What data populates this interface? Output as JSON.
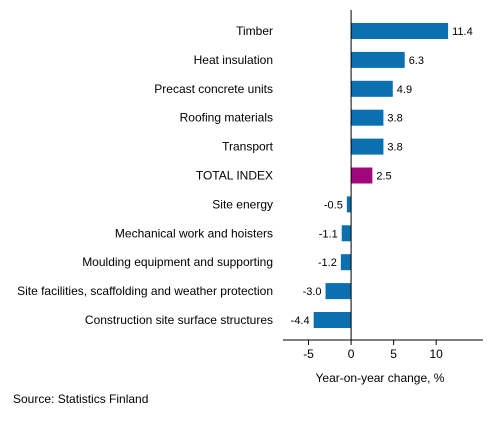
{
  "chart_data": {
    "type": "bar",
    "orientation": "horizontal",
    "categories": [
      "Timber",
      "Heat insulation",
      "Precast concrete units",
      "Roofing materials",
      "Transport",
      "TOTAL INDEX",
      "Site energy",
      "Mechanical work and hoisters",
      "Moulding equipment and supporting",
      "Site facilities, scaffolding and weather protection",
      "Construction site surface structures"
    ],
    "values": [
      11.4,
      6.3,
      4.9,
      3.8,
      3.8,
      2.5,
      -0.5,
      -1.1,
      -1.2,
      -3.0,
      -4.4
    ],
    "value_labels": [
      "11.4",
      "6.3",
      "4.9",
      "3.8",
      "3.8",
      "2.5",
      "-0.5",
      "-1.1",
      "-1.2",
      "-3.0",
      "-4.4"
    ],
    "highlight_category": "TOTAL INDEX",
    "xlim": [
      -8,
      15.5
    ],
    "xticks": [
      -5,
      0,
      5,
      10
    ],
    "xtick_labels": [
      "-5",
      "0",
      "5",
      "10"
    ],
    "xlabel": "Year-on-year change, %",
    "grid": false,
    "legend": "none"
  },
  "colors": {
    "bar": "#0a70b0",
    "highlight": "#a0077d",
    "axis": "#000000"
  },
  "source": "Source: Statistics Finland"
}
